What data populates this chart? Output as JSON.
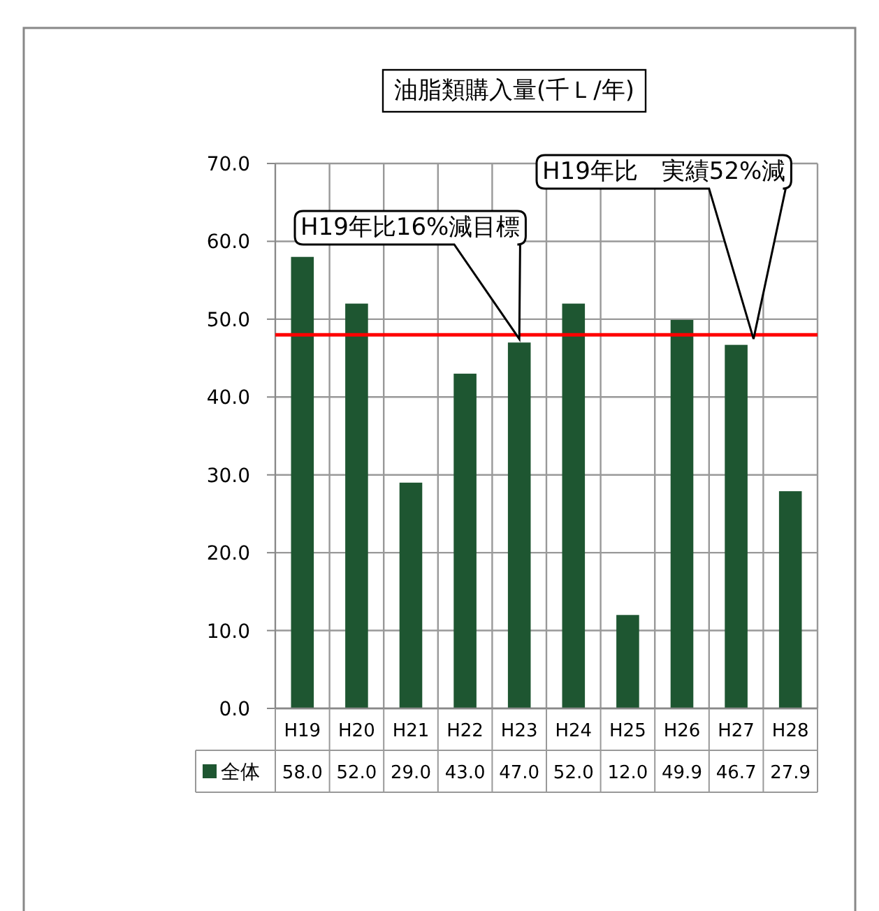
{
  "chart_data": {
    "type": "bar",
    "title": "油脂類購入量(千Ｌ/年)",
    "categories": [
      "H19",
      "H20",
      "H21",
      "H22",
      "H23",
      "H24",
      "H25",
      "H26",
      "H27",
      "H28"
    ],
    "series": [
      {
        "name": "全体",
        "color": "#1e5631",
        "values": [
          58.0,
          52.0,
          29.0,
          43.0,
          47.0,
          52.0,
          12.0,
          49.9,
          46.7,
          27.9
        ],
        "value_labels": [
          "58.0",
          "52.0",
          "29.0",
          "43.0",
          "47.0",
          "52.0",
          "12.0",
          "49.9",
          "46.7",
          "27.9"
        ]
      }
    ],
    "ylim": [
      0,
      70
    ],
    "yticks": [
      {
        "value": 0,
        "label": "0.0"
      },
      {
        "value": 10,
        "label": "10.0"
      },
      {
        "value": 20,
        "label": "20.0"
      },
      {
        "value": 30,
        "label": "30.0"
      },
      {
        "value": 40,
        "label": "40.0"
      },
      {
        "value": 50,
        "label": "50.0"
      },
      {
        "value": 60,
        "label": "60.0"
      },
      {
        "value": 70,
        "label": "70.0"
      }
    ],
    "grid": true,
    "legend": "bottom",
    "ref_lines": [
      {
        "axis": "y",
        "value": 48,
        "color": "#ff0000"
      }
    ],
    "annotations": [
      "H19年比16%減目標",
      "H19年比　実績52%減"
    ]
  }
}
